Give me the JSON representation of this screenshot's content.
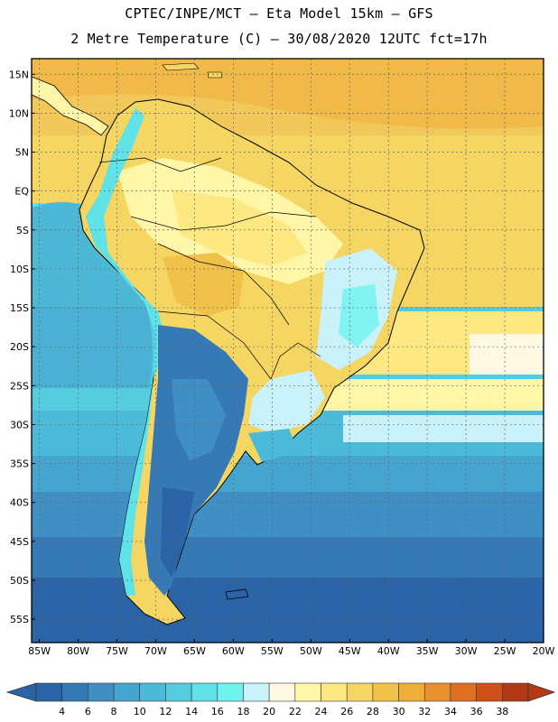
{
  "header": {
    "line1": "CPTEC/INPE/MCT –  Eta Model 15km – GFS",
    "line2": "2 Metre Temperature (C) – 30/08/2020 12UTC fct=17h"
  },
  "map": {
    "lon_range": [
      -86,
      -20
    ],
    "lat_range": [
      -58,
      17
    ],
    "x_ticks": [
      "85W",
      "80W",
      "75W",
      "70W",
      "65W",
      "60W",
      "55W",
      "50W",
      "45W",
      "40W",
      "35W",
      "30W",
      "25W",
      "20W"
    ],
    "y_ticks": [
      "15N",
      "10N",
      "5N",
      "EQ",
      "5S",
      "10S",
      "15S",
      "20S",
      "25S",
      "30S",
      "35S",
      "40S",
      "45S",
      "50S",
      "55S"
    ],
    "gridlines": true
  },
  "colorbar": {
    "labels": [
      "4",
      "6",
      "8",
      "10",
      "12",
      "14",
      "16",
      "18",
      "20",
      "22",
      "24",
      "26",
      "28",
      "30",
      "32",
      "34",
      "36",
      "38"
    ],
    "colors": [
      "#2a63a6",
      "#3579b6",
      "#3f8fc4",
      "#46a5cf",
      "#4cbad9",
      "#56ccdf",
      "#5fe2e8",
      "#6ef3f0",
      "#c9f2fb",
      "#fff8e3",
      "#fff6a8",
      "#fde882",
      "#f6d662",
      "#f0c24a",
      "#eeae3a",
      "#e8902e",
      "#e06f22",
      "#d0501a",
      "#b23816"
    ]
  }
}
